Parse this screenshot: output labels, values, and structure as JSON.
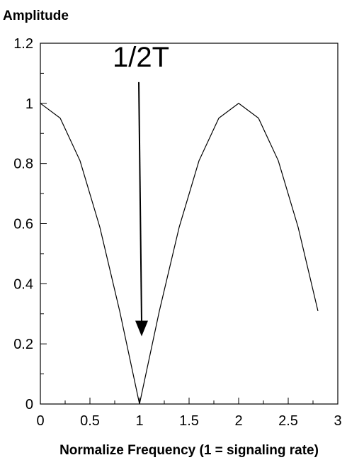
{
  "chart_data": {
    "type": "line",
    "title": "",
    "ylabel": "Amplitude",
    "xlabel": "Normalize Frequency (1 = signaling rate)",
    "xlim": [
      0,
      3
    ],
    "ylim": [
      0,
      1.2
    ],
    "x_ticks": [
      0,
      0.5,
      1,
      1.5,
      2,
      2.5,
      3
    ],
    "x_tick_labels": [
      "0",
      "0.5",
      "1",
      "1.5",
      "2",
      "2.5",
      "3"
    ],
    "y_ticks": [
      0,
      0.2,
      0.4,
      0.6,
      0.8,
      1,
      1.2
    ],
    "y_tick_labels": [
      "0",
      "0.2",
      "0.4",
      "0.6",
      "0.8",
      "1",
      "1.2"
    ],
    "grid": false,
    "series": [
      {
        "x": [
          0,
          0.2,
          0.4,
          0.6,
          0.8,
          1.0,
          1.2,
          1.4,
          1.6,
          1.8,
          2.0,
          2.2,
          2.4,
          2.6,
          2.8
        ],
        "values": [
          1.0,
          0.951,
          0.809,
          0.588,
          0.309,
          0.0,
          0.309,
          0.588,
          0.809,
          0.951,
          1.0,
          0.951,
          0.809,
          0.588,
          0.309
        ]
      }
    ],
    "annotations": [
      {
        "text": "1/2T",
        "arrow_from": [
          1.0,
          1.08
        ],
        "arrow_to": [
          1.0,
          0.23
        ]
      }
    ],
    "colors": {
      "line": "#000000",
      "axis": "#000000"
    }
  }
}
